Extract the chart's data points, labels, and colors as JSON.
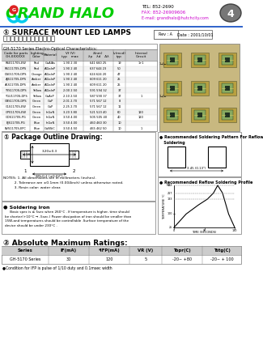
{
  "title": "SURFACE MOUNT LED LAMPS",
  "subtitle": "表面點著型發光二極體指示燈",
  "company": "GRAND HALO",
  "tel": "TEL: 852-2690",
  "fax": "FAX: 852-26909606",
  "email": "E-mail: grandhalo@hutchcity.com",
  "page": "4",
  "rev": "Rev : A",
  "date": "Date : 2001/10/01",
  "series_title": "GH-5170 Series Electro-Optical Characteristics:",
  "table_col_headers": [
    "Code for parts\nGH-XXXXXX",
    "Lighting\nColor",
    "Material",
    "Vf (V)",
    "typ  max",
    "λ(nm)",
    "λp    λd    Δλ",
    "Iv(mcd)\ntyp",
    "Internal\nCircuit"
  ],
  "table_rows": [
    [
      "RS01170S-EW",
      "Red",
      "GaAlAs",
      "1.90",
      "2.30",
      "641",
      "660",
      "25",
      "19",
      "1+1"
    ],
    [
      "RS11170S-DPS",
      "Red",
      "AlGaInP",
      "1.90",
      "2.40",
      "637",
      "644",
      "23",
      "50",
      ""
    ],
    [
      "DS01170S-DPS",
      "Orange",
      "AlGaInP",
      "1.90",
      "2.40",
      "624",
      "624",
      "20",
      "47",
      ""
    ],
    [
      "AJS1170S-DPS",
      "Amber",
      "AlGaInP",
      "1.90",
      "2.40",
      "609",
      "611",
      "20",
      "25",
      ""
    ],
    [
      "ALS1170S-DPS",
      "Amber",
      "AlGaInP",
      "1.90",
      "2.40",
      "609",
      "611",
      "20",
      "25",
      ""
    ],
    [
      "YYS1170S-DPS",
      "Yellow",
      "AlGaInP",
      "2.00",
      "2.50",
      "591",
      "594",
      "32",
      "37",
      ""
    ],
    [
      "YGU1170S-DPS",
      "Yellow",
      "GaAsP",
      "2.10",
      "2.50",
      "587",
      "590",
      "37",
      "37",
      "1"
    ],
    [
      "GBS1170S-DPS",
      "Green",
      "GaP",
      "2.01",
      "2.70",
      "571",
      "567",
      "12",
      "8",
      ""
    ],
    [
      "GLS1170S-EW",
      "Green",
      "GaP",
      "2.25",
      "2.70",
      "571",
      "567",
      "12",
      "11",
      ""
    ],
    [
      "GP01170S-EW",
      "Green",
      "InGaN",
      "3.20",
      "3.80",
      "521",
      "523",
      "40",
      "60",
      "120"
    ],
    [
      "GDS1170S-PG",
      "Green",
      "InGaN",
      "3.50",
      "4.00",
      "505",
      "505",
      "40",
      "40",
      "120"
    ],
    [
      "BJS1170S-PG",
      "Blue",
      "InGaN",
      "3.50",
      "4.00",
      "460",
      "460",
      "30",
      "10",
      ""
    ],
    [
      "BVS1170S-EPC",
      "Blue",
      "GaNSiC",
      "3.50",
      "4.50",
      "465",
      "462",
      "50",
      "10",
      "1"
    ]
  ],
  "pkg_section": "① Package Outline Drawing:",
  "abs_section": "② Absolute Maximum Ratings:",
  "abs_headers": [
    "Series",
    "IF(mA)",
    "*IFP(mA)",
    "VR (V)",
    "Topr(C)",
    "Tstg(C)"
  ],
  "abs_row": [
    "GH-5170 Series",
    "30",
    "120",
    "5",
    "-20~ +80",
    "-20~ + 100"
  ],
  "abs_note": "●Condition for IFP is pulse of 1/10 duty and 0.1msec width",
  "soldering_title": "● Soldering iron",
  "soldering_text": "     Basic spec is ≤ 5sec when 260°C . If temperature is higher, time should\nbe shorter(+10°C → -5sec.) Power dissipation of iron should be smaller than\n15W,and temperatures should be controllable .Surface temperature of the\ndevice should be under 230°C .",
  "notes": "NOTES: 1. All dimensions are in millimeters (inches).\n          2. Tolerance are ±0.1mm (0.004inch) unless otherwise noted.\n          3. Resin color: water clear.",
  "reflow_title": "● Recommended Soldering Pattern For Reflow\n   Soldering",
  "reflow_profile_title": "● Recommended Reflow Soldering Profile",
  "logo_blue": "#00aaee",
  "logo_red": "#cc2222",
  "text_blue": "#00aa00",
  "header_green": "#00bb00",
  "bg_color": "#e8e8e8",
  "header_bg": "#aaaaaa",
  "table_line_color": "#555555"
}
